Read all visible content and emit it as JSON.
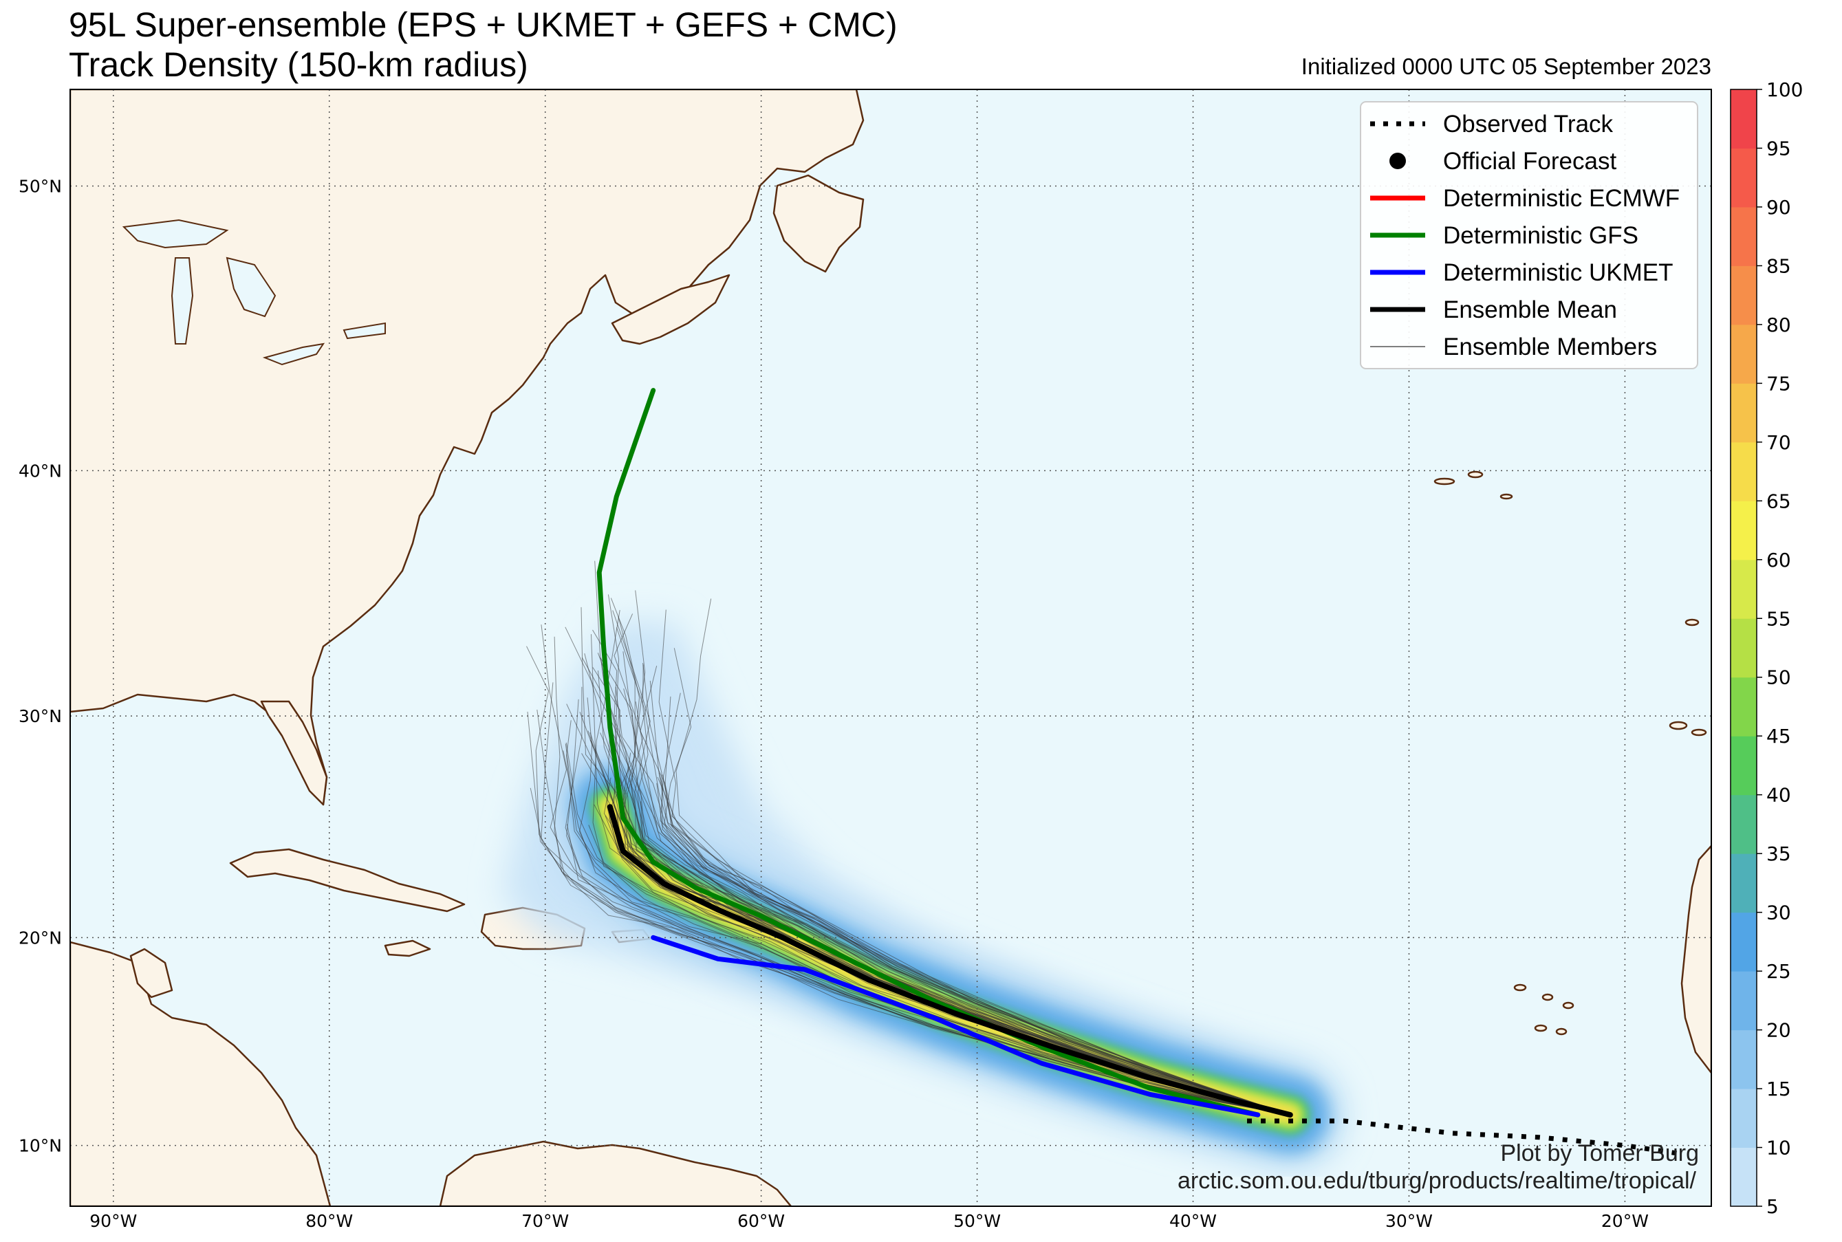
{
  "header": {
    "title_line1": "95L Super-ensemble (EPS + UKMET + GEFS + CMC)",
    "title_line2": "Track Density (150-km radius)",
    "initialized": "Initialized 0000 UTC 05 September 2023"
  },
  "axes": {
    "lon_labels": [
      "90°W",
      "80°W",
      "70°W",
      "60°W",
      "50°W",
      "40°W",
      "30°W",
      "20°W"
    ],
    "lon_values": [
      -90,
      -80,
      -70,
      -60,
      -50,
      -40,
      -30,
      -20
    ],
    "lat_labels": [
      "10°N",
      "20°N",
      "30°N",
      "40°N",
      "50°N"
    ],
    "lat_values": [
      10,
      20,
      30,
      40,
      50
    ],
    "lon_range": [
      -92,
      -16
    ],
    "lat_range": [
      7,
      53
    ]
  },
  "legend": {
    "items": [
      {
        "label": "Observed Track",
        "style": "dotted",
        "color": "#000000"
      },
      {
        "label": "Official Forecast",
        "style": "dot",
        "color": "#000000"
      },
      {
        "label": "Deterministic ECMWF",
        "style": "line",
        "color": "#ff0000"
      },
      {
        "label": "Deterministic GFS",
        "style": "line",
        "color": "#008000"
      },
      {
        "label": "Deterministic UKMET",
        "style": "line",
        "color": "#0000ff"
      },
      {
        "label": "Ensemble Mean",
        "style": "line",
        "color": "#000000"
      },
      {
        "label": "Ensemble Members",
        "style": "thin",
        "color": "#555555"
      }
    ]
  },
  "colorbar": {
    "ticks": [
      "5",
      "10",
      "15",
      "20",
      "25",
      "30",
      "35",
      "40",
      "45",
      "50",
      "55",
      "60",
      "65",
      "70",
      "75",
      "80",
      "85",
      "90",
      "95",
      "100"
    ],
    "colors": [
      "#c6e2f7",
      "#a9d3f2",
      "#8cc4ee",
      "#6fb4ea",
      "#52a5e6",
      "#4fb0b8",
      "#4fbf87",
      "#56cc5a",
      "#82d64a",
      "#b5e045",
      "#d7e94a",
      "#f5f04a",
      "#f6dc4a",
      "#f6c24a",
      "#f6a84a",
      "#f68e4a",
      "#f6744a",
      "#f55a4a",
      "#f0444a"
    ],
    "max": 100,
    "min": 5
  },
  "tracks": {
    "observed": [
      [
        -37.5,
        11.2
      ],
      [
        -33,
        11.2
      ],
      [
        -28,
        10.6
      ],
      [
        -24,
        10.4
      ],
      [
        -20,
        10.0
      ],
      [
        -17.5,
        9.6
      ]
    ],
    "gfs": [
      [
        -37,
        11.5
      ],
      [
        -42,
        12.8
      ],
      [
        -47,
        14.8
      ],
      [
        -52,
        17.0
      ],
      [
        -56,
        19.0
      ],
      [
        -60,
        21.0
      ],
      [
        -63,
        22.3
      ],
      [
        -65,
        23.5
      ],
      [
        -66.4,
        25.5
      ],
      [
        -67,
        29.5
      ],
      [
        -67.3,
        33.0
      ],
      [
        -67.5,
        36
      ],
      [
        -66.7,
        39
      ],
      [
        -65,
        43
      ]
    ],
    "ukmet": [
      [
        -37,
        11.5
      ],
      [
        -42,
        12.5
      ],
      [
        -47,
        14.0
      ],
      [
        -52,
        16.2
      ],
      [
        -58,
        18.5
      ],
      [
        -62,
        19.0
      ],
      [
        -65,
        20.0
      ]
    ],
    "ensemble_mean": [
      [
        -35.5,
        11.5
      ],
      [
        -38.5,
        12.3
      ],
      [
        -42,
        13.3
      ],
      [
        -46.5,
        14.8
      ],
      [
        -51,
        16.4
      ],
      [
        -55,
        18.0
      ],
      [
        -59,
        20.0
      ],
      [
        -62,
        21.3
      ],
      [
        -64.5,
        22.5
      ],
      [
        -66.4,
        24.0
      ],
      [
        -67,
        26.0
      ]
    ],
    "ecmwf": []
  },
  "density": {
    "core": [
      [
        -35.5,
        11.5
      ],
      [
        -38.5,
        12.3
      ],
      [
        -42,
        13.3
      ],
      [
        -46.5,
        14.8
      ],
      [
        -51,
        16.4
      ],
      [
        -55,
        18.0
      ],
      [
        -59,
        20.0
      ],
      [
        -62,
        21.3
      ],
      [
        -64.5,
        22.5
      ],
      [
        -66.4,
        24.0
      ],
      [
        -67,
        26.0
      ]
    ],
    "outer_lat_extent": [
      [
        -60,
        36
      ],
      [
        -68,
        34
      ],
      [
        -71,
        25
      ],
      [
        -72,
        21
      ]
    ]
  },
  "credits": {
    "line1": "Plot by Tomer Burg",
    "line2": "arctic.som.ou.edu/tburg/products/realtime/tropical/"
  },
  "colors": {
    "ocean": "#eaf8fc",
    "land": "#fbf4e8",
    "coast": "#5a2c10",
    "grid": "#555555"
  }
}
